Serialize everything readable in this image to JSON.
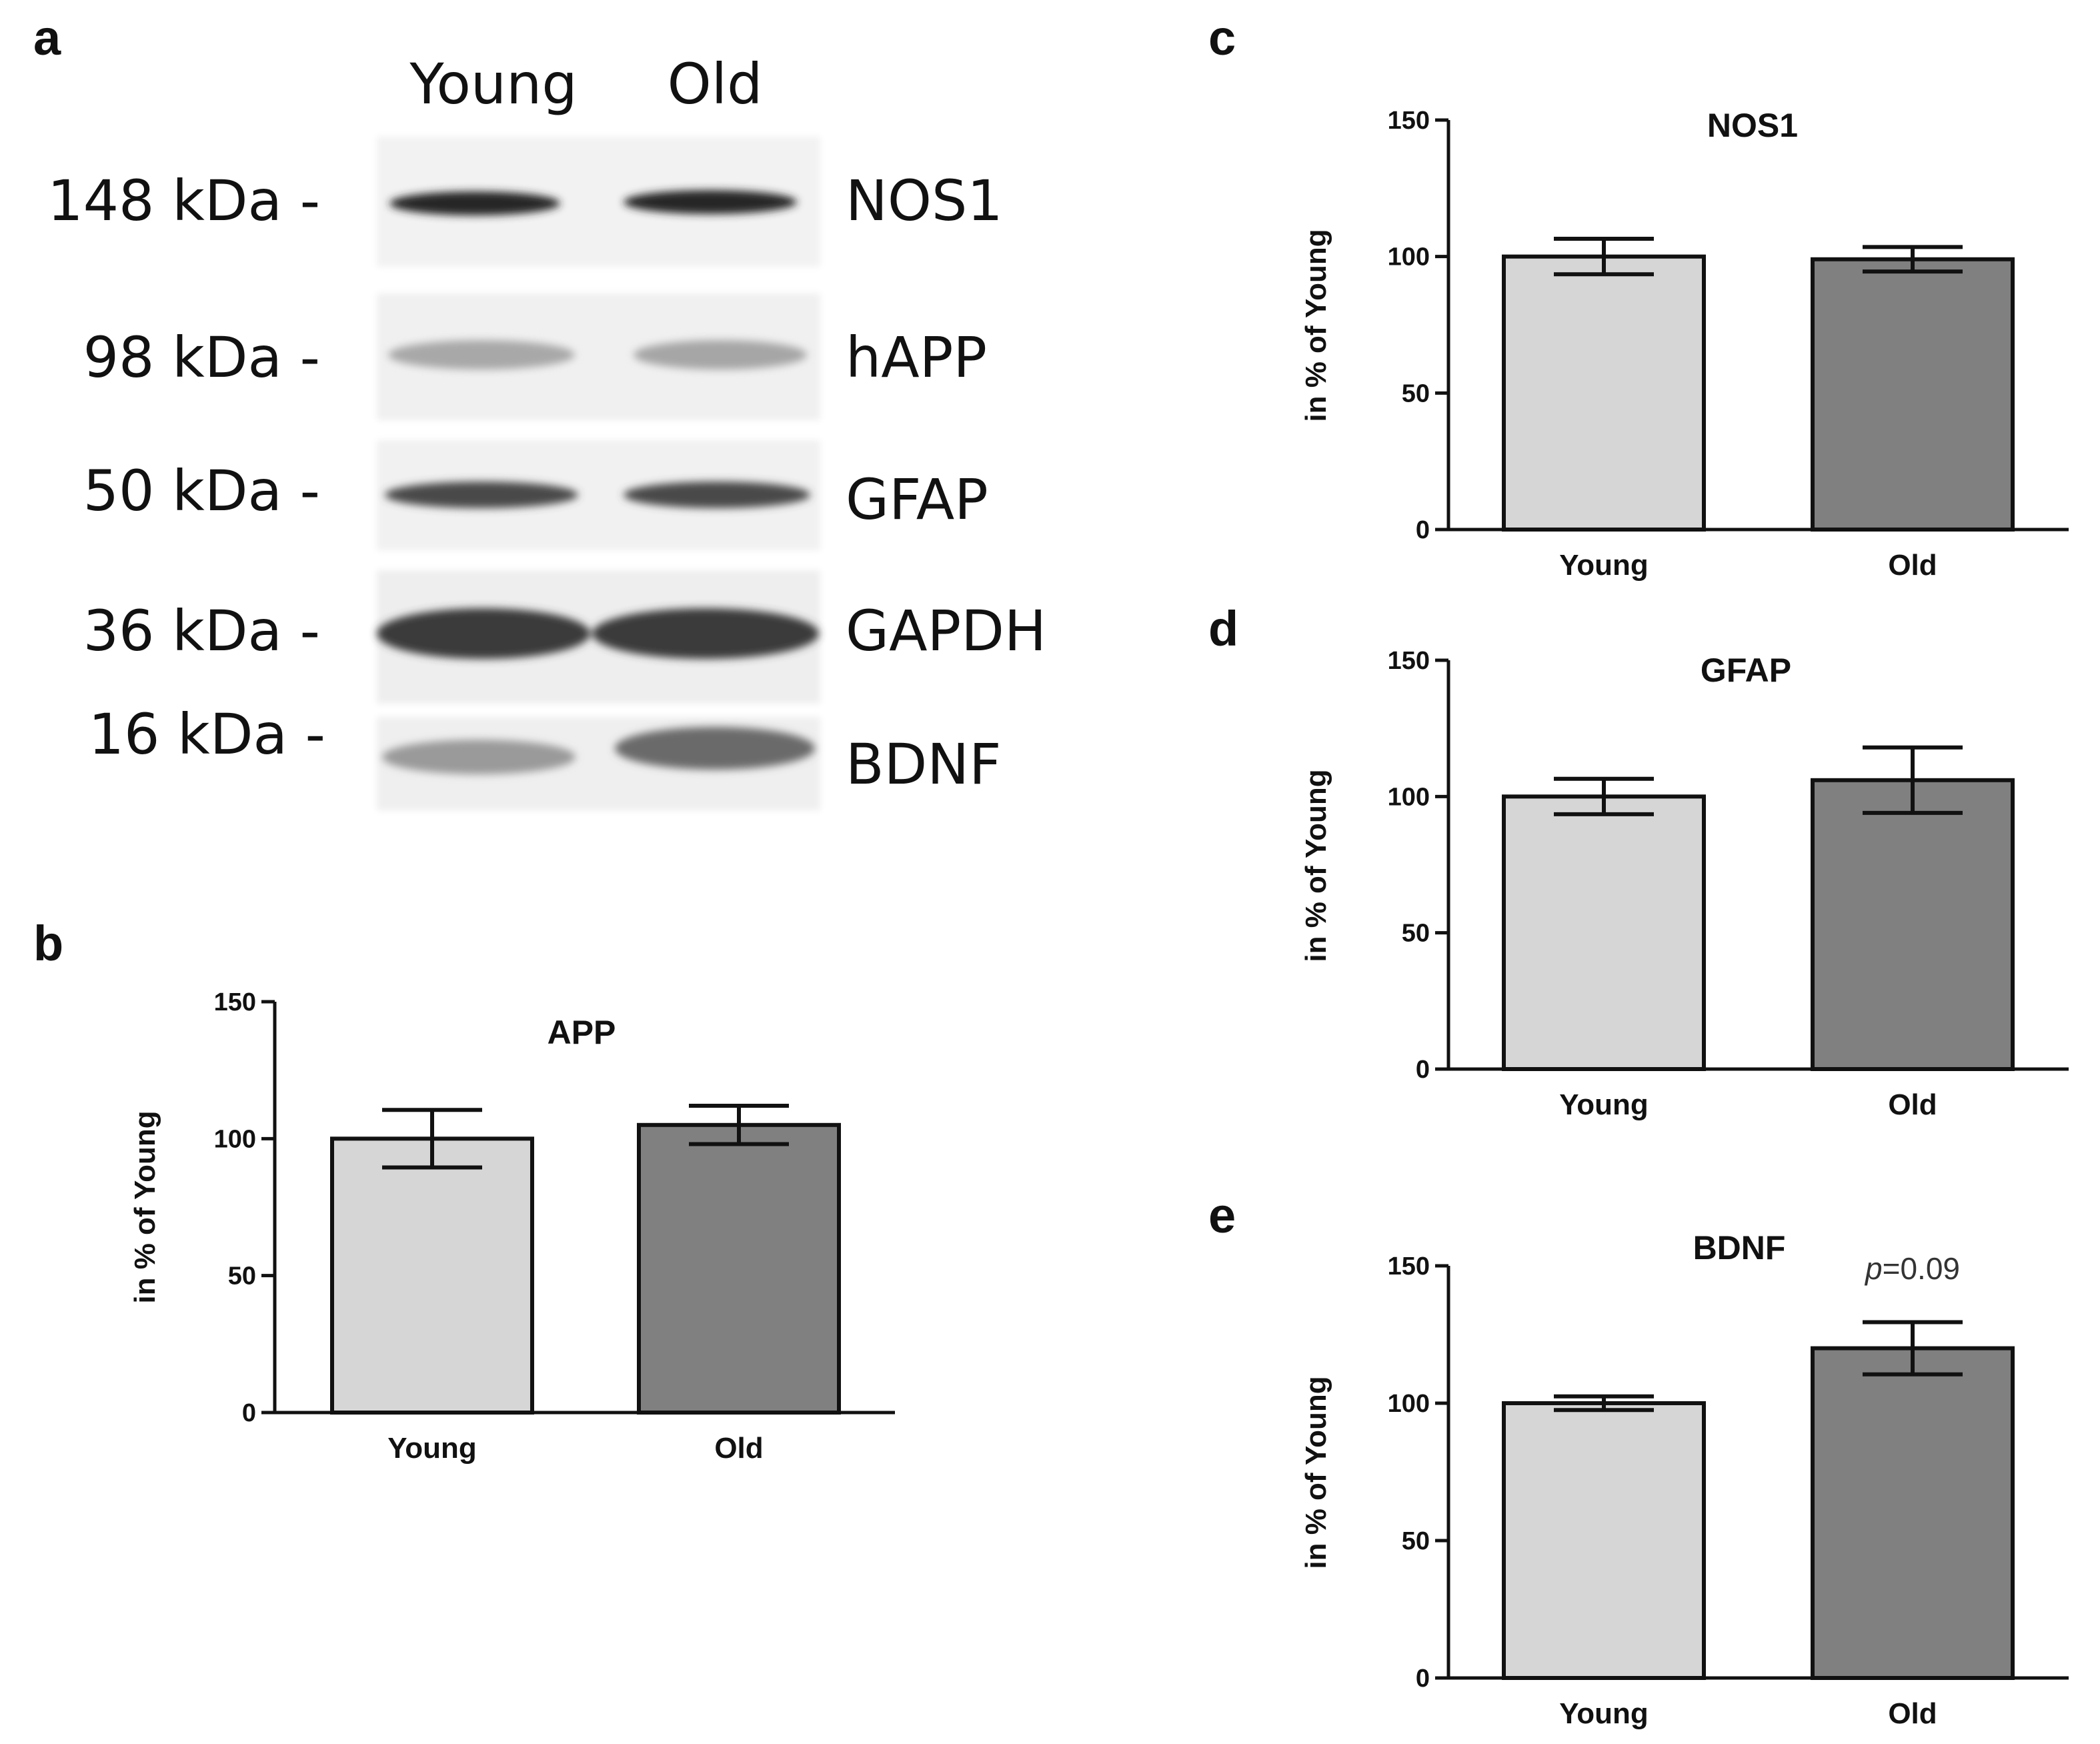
{
  "panels": {
    "a": "a",
    "b": "b",
    "c": "c",
    "d": "d",
    "e": "e"
  },
  "colors": {
    "young": "#d6d6d6",
    "old": "#808080",
    "axis": "#111111"
  },
  "blot": {
    "lanes": [
      "Young",
      "Old"
    ],
    "rows": [
      {
        "marker": "148 kDa -",
        "protein": "NOS1"
      },
      {
        "marker": "98 kDa -",
        "protein": "hAPP"
      },
      {
        "marker": "50 kDa -",
        "protein": "GFAP"
      },
      {
        "marker": "36 kDa -",
        "protein": "GAPDH"
      },
      {
        "marker": "16 kDa -",
        "protein": "BDNF"
      }
    ]
  },
  "chart_data": [
    {
      "panel": "b",
      "type": "bar",
      "title": "APP",
      "ylabel": "in % of Young",
      "xlabel": "",
      "categories": [
        "Young",
        "Old"
      ],
      "values": [
        100,
        105
      ],
      "errors": [
        10.5,
        7
      ],
      "ylim": [
        0,
        150
      ],
      "yticks": [
        0,
        50,
        100,
        150
      ],
      "annotation": null
    },
    {
      "panel": "c",
      "type": "bar",
      "title": "NOS1",
      "ylabel": "in % of Young",
      "xlabel": "",
      "categories": [
        "Young",
        "Old"
      ],
      "values": [
        100,
        99
      ],
      "errors": [
        6.5,
        4.5
      ],
      "ylim": [
        0,
        150
      ],
      "yticks": [
        0,
        50,
        100,
        150
      ],
      "annotation": null
    },
    {
      "panel": "d",
      "type": "bar",
      "title": "GFAP",
      "ylabel": "in % of Young",
      "xlabel": "",
      "categories": [
        "Young",
        "Old"
      ],
      "values": [
        100,
        106
      ],
      "errors": [
        6.5,
        12
      ],
      "ylim": [
        0,
        150
      ],
      "yticks": [
        0,
        50,
        100,
        150
      ],
      "annotation": null
    },
    {
      "panel": "e",
      "type": "bar",
      "title": "BDNF",
      "ylabel": "in % of Young",
      "xlabel": "",
      "categories": [
        "Young",
        "Old"
      ],
      "values": [
        100,
        120
      ],
      "errors": [
        2.5,
        9.5
      ],
      "ylim": [
        0,
        150
      ],
      "yticks": [
        0,
        50,
        100,
        150
      ],
      "annotation": {
        "italic": "p",
        "text": "=0.09"
      }
    }
  ]
}
